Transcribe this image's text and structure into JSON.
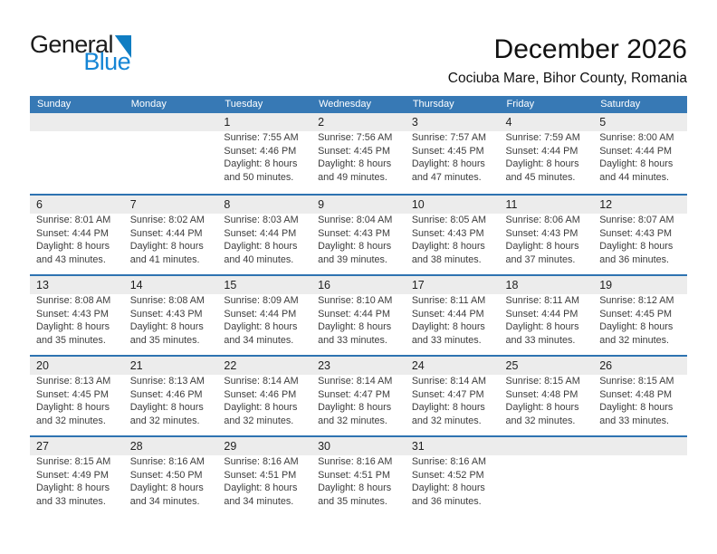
{
  "logo": {
    "word1": "General",
    "word2": "Blue"
  },
  "header": {
    "title": "December 2026",
    "subtitle": "Cociuba Mare, Bihor County, Romania"
  },
  "colors": {
    "header_blue": "#3779b5",
    "row_line_blue": "#2e73b1",
    "band_gray": "#ececec",
    "logo_blue": "#1585d5",
    "triangle_blue": "#0f7dc2"
  },
  "calendar": {
    "day_headers": [
      "Sunday",
      "Monday",
      "Tuesday",
      "Wednesday",
      "Thursday",
      "Friday",
      "Saturday"
    ],
    "weeks": [
      [
        null,
        null,
        {
          "day": "1",
          "lines": [
            "Sunrise: 7:55 AM",
            "Sunset: 4:46 PM",
            "Daylight: 8 hours",
            "and 50 minutes."
          ]
        },
        {
          "day": "2",
          "lines": [
            "Sunrise: 7:56 AM",
            "Sunset: 4:45 PM",
            "Daylight: 8 hours",
            "and 49 minutes."
          ]
        },
        {
          "day": "3",
          "lines": [
            "Sunrise: 7:57 AM",
            "Sunset: 4:45 PM",
            "Daylight: 8 hours",
            "and 47 minutes."
          ]
        },
        {
          "day": "4",
          "lines": [
            "Sunrise: 7:59 AM",
            "Sunset: 4:44 PM",
            "Daylight: 8 hours",
            "and 45 minutes."
          ]
        },
        {
          "day": "5",
          "lines": [
            "Sunrise: 8:00 AM",
            "Sunset: 4:44 PM",
            "Daylight: 8 hours",
            "and 44 minutes."
          ]
        }
      ],
      [
        {
          "day": "6",
          "lines": [
            "Sunrise: 8:01 AM",
            "Sunset: 4:44 PM",
            "Daylight: 8 hours",
            "and 43 minutes."
          ]
        },
        {
          "day": "7",
          "lines": [
            "Sunrise: 8:02 AM",
            "Sunset: 4:44 PM",
            "Daylight: 8 hours",
            "and 41 minutes."
          ]
        },
        {
          "day": "8",
          "lines": [
            "Sunrise: 8:03 AM",
            "Sunset: 4:44 PM",
            "Daylight: 8 hours",
            "and 40 minutes."
          ]
        },
        {
          "day": "9",
          "lines": [
            "Sunrise: 8:04 AM",
            "Sunset: 4:43 PM",
            "Daylight: 8 hours",
            "and 39 minutes."
          ]
        },
        {
          "day": "10",
          "lines": [
            "Sunrise: 8:05 AM",
            "Sunset: 4:43 PM",
            "Daylight: 8 hours",
            "and 38 minutes."
          ]
        },
        {
          "day": "11",
          "lines": [
            "Sunrise: 8:06 AM",
            "Sunset: 4:43 PM",
            "Daylight: 8 hours",
            "and 37 minutes."
          ]
        },
        {
          "day": "12",
          "lines": [
            "Sunrise: 8:07 AM",
            "Sunset: 4:43 PM",
            "Daylight: 8 hours",
            "and 36 minutes."
          ]
        }
      ],
      [
        {
          "day": "13",
          "lines": [
            "Sunrise: 8:08 AM",
            "Sunset: 4:43 PM",
            "Daylight: 8 hours",
            "and 35 minutes."
          ]
        },
        {
          "day": "14",
          "lines": [
            "Sunrise: 8:08 AM",
            "Sunset: 4:43 PM",
            "Daylight: 8 hours",
            "and 35 minutes."
          ]
        },
        {
          "day": "15",
          "lines": [
            "Sunrise: 8:09 AM",
            "Sunset: 4:44 PM",
            "Daylight: 8 hours",
            "and 34 minutes."
          ]
        },
        {
          "day": "16",
          "lines": [
            "Sunrise: 8:10 AM",
            "Sunset: 4:44 PM",
            "Daylight: 8 hours",
            "and 33 minutes."
          ]
        },
        {
          "day": "17",
          "lines": [
            "Sunrise: 8:11 AM",
            "Sunset: 4:44 PM",
            "Daylight: 8 hours",
            "and 33 minutes."
          ]
        },
        {
          "day": "18",
          "lines": [
            "Sunrise: 8:11 AM",
            "Sunset: 4:44 PM",
            "Daylight: 8 hours",
            "and 33 minutes."
          ]
        },
        {
          "day": "19",
          "lines": [
            "Sunrise: 8:12 AM",
            "Sunset: 4:45 PM",
            "Daylight: 8 hours",
            "and 32 minutes."
          ]
        }
      ],
      [
        {
          "day": "20",
          "lines": [
            "Sunrise: 8:13 AM",
            "Sunset: 4:45 PM",
            "Daylight: 8 hours",
            "and 32 minutes."
          ]
        },
        {
          "day": "21",
          "lines": [
            "Sunrise: 8:13 AM",
            "Sunset: 4:46 PM",
            "Daylight: 8 hours",
            "and 32 minutes."
          ]
        },
        {
          "day": "22",
          "lines": [
            "Sunrise: 8:14 AM",
            "Sunset: 4:46 PM",
            "Daylight: 8 hours",
            "and 32 minutes."
          ]
        },
        {
          "day": "23",
          "lines": [
            "Sunrise: 8:14 AM",
            "Sunset: 4:47 PM",
            "Daylight: 8 hours",
            "and 32 minutes."
          ]
        },
        {
          "day": "24",
          "lines": [
            "Sunrise: 8:14 AM",
            "Sunset: 4:47 PM",
            "Daylight: 8 hours",
            "and 32 minutes."
          ]
        },
        {
          "day": "25",
          "lines": [
            "Sunrise: 8:15 AM",
            "Sunset: 4:48 PM",
            "Daylight: 8 hours",
            "and 32 minutes."
          ]
        },
        {
          "day": "26",
          "lines": [
            "Sunrise: 8:15 AM",
            "Sunset: 4:48 PM",
            "Daylight: 8 hours",
            "and 33 minutes."
          ]
        }
      ],
      [
        {
          "day": "27",
          "lines": [
            "Sunrise: 8:15 AM",
            "Sunset: 4:49 PM",
            "Daylight: 8 hours",
            "and 33 minutes."
          ]
        },
        {
          "day": "28",
          "lines": [
            "Sunrise: 8:16 AM",
            "Sunset: 4:50 PM",
            "Daylight: 8 hours",
            "and 34 minutes."
          ]
        },
        {
          "day": "29",
          "lines": [
            "Sunrise: 8:16 AM",
            "Sunset: 4:51 PM",
            "Daylight: 8 hours",
            "and 34 minutes."
          ]
        },
        {
          "day": "30",
          "lines": [
            "Sunrise: 8:16 AM",
            "Sunset: 4:51 PM",
            "Daylight: 8 hours",
            "and 35 minutes."
          ]
        },
        {
          "day": "31",
          "lines": [
            "Sunrise: 8:16 AM",
            "Sunset: 4:52 PM",
            "Daylight: 8 hours",
            "and 36 minutes."
          ]
        },
        null,
        null
      ]
    ]
  }
}
